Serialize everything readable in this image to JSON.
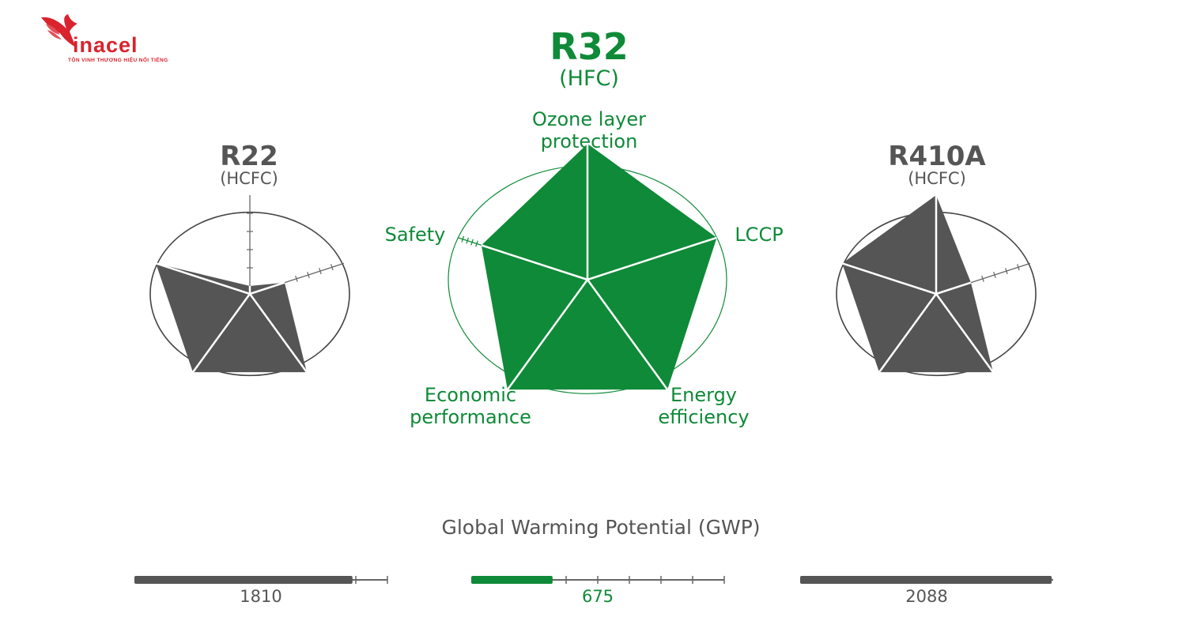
{
  "logo": {
    "wordmark": "inacel",
    "tagline": "TÔN VINH THƯƠNG HIỆU NỔI TIẾNG",
    "color": "#d9232d"
  },
  "colors": {
    "green": "#0f8a38",
    "gray": "#555555",
    "text_gray": "#555555",
    "outline": "#444444"
  },
  "chart_data": [
    {
      "type": "radar",
      "title": "R32",
      "subtitle": "(HFC)",
      "axes": [
        "Ozone layer protection",
        "LCCP",
        "Energy efficiency",
        "Economic performance",
        "Safety"
      ],
      "axis_labels": {
        "ozone_1": "Ozone layer",
        "ozone_2": "protection",
        "lccp": "LCCP",
        "energy_1": "Energy",
        "energy_2": "efficiency",
        "econ_1": "Economic",
        "econ_2": "performance",
        "safety": "Safety"
      },
      "values": [
        1.0,
        1.0,
        1.0,
        1.0,
        0.82
      ],
      "max": 1.0,
      "color": "#0f8a38"
    },
    {
      "type": "radar",
      "title": "R22",
      "subtitle": "(HCFC)",
      "axes": [
        "Ozone layer protection",
        "LCCP",
        "Energy efficiency",
        "Economic performance",
        "Safety"
      ],
      "values": [
        0.08,
        0.37,
        0.98,
        0.98,
        1.0
      ],
      "max": 1.0,
      "color": "#555555"
    },
    {
      "type": "radar",
      "title": "R410A",
      "subtitle": "(HCFC)",
      "axes": [
        "Ozone layer protection",
        "LCCP",
        "Energy efficiency",
        "Economic performance",
        "Safety"
      ],
      "values": [
        1.0,
        0.37,
        0.98,
        0.98,
        1.0
      ],
      "max": 1.0,
      "color": "#555555"
    },
    {
      "type": "bar",
      "title": "Global Warming Potential (GWP)",
      "series": [
        {
          "label": "1810",
          "value": 1810,
          "color": "#555555"
        },
        {
          "label": "675",
          "value": 675,
          "color": "#0f8a38"
        },
        {
          "label": "2088",
          "value": 2088,
          "color": "#555555"
        }
      ],
      "xlim": [
        0,
        2100
      ]
    }
  ]
}
